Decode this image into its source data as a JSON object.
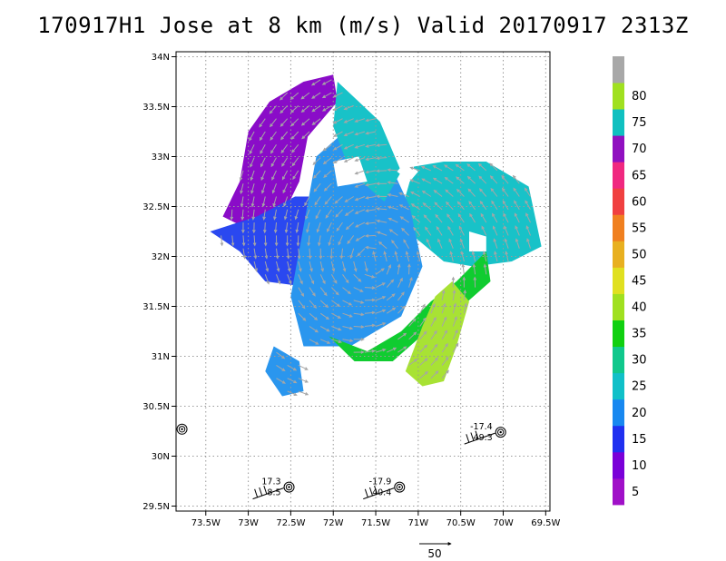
{
  "chart_data": {
    "type": "heatmap",
    "title": "170917H1 Jose at 8 km (m/s) Valid 20170917 2313Z",
    "xlabel": "",
    "ylabel": "",
    "xlim": [
      -73.85,
      -69.45
    ],
    "ylim": [
      29.45,
      34.05
    ],
    "grid": true,
    "x_ticks": [
      {
        "value": -73.5,
        "label": "73.5W"
      },
      {
        "value": -73.0,
        "label": "73W"
      },
      {
        "value": -72.5,
        "label": "72.5W"
      },
      {
        "value": -72.0,
        "label": "72W"
      },
      {
        "value": -71.5,
        "label": "71.5W"
      },
      {
        "value": -71.0,
        "label": "71W"
      },
      {
        "value": -70.5,
        "label": "70.5W"
      },
      {
        "value": -70.0,
        "label": "70W"
      },
      {
        "value": -69.5,
        "label": "69.5W"
      }
    ],
    "y_ticks": [
      {
        "value": 29.5,
        "label": "29.5N"
      },
      {
        "value": 30.0,
        "label": "30N"
      },
      {
        "value": 30.5,
        "label": "30.5N"
      },
      {
        "value": 31.0,
        "label": "31N"
      },
      {
        "value": 31.5,
        "label": "31.5N"
      },
      {
        "value": 32.0,
        "label": "32N"
      },
      {
        "value": 32.5,
        "label": "32.5N"
      },
      {
        "value": 33.0,
        "label": "33N"
      },
      {
        "value": 33.5,
        "label": "33.5N"
      },
      {
        "value": 34.0,
        "label": "34N"
      }
    ],
    "colorbar": {
      "labels": [
        "5",
        "10",
        "15",
        "20",
        "25",
        "30",
        "35",
        "40",
        "45",
        "50",
        "55",
        "60",
        "65",
        "70",
        "75",
        "80"
      ],
      "bins": [
        {
          "color": "#a010c8"
        },
        {
          "color": "#7a00d8"
        },
        {
          "color": "#2030f0"
        },
        {
          "color": "#1888f0"
        },
        {
          "color": "#10c0c8"
        },
        {
          "color": "#10c88c"
        },
        {
          "color": "#10d010"
        },
        {
          "color": "#a0e020"
        },
        {
          "color": "#e0e020"
        },
        {
          "color": "#e8b020"
        },
        {
          "color": "#f08020"
        },
        {
          "color": "#f04040"
        },
        {
          "color": "#f02880"
        },
        {
          "color": "#9010c0"
        },
        {
          "color": "#10c0c0"
        },
        {
          "color": "#a0e020"
        },
        {
          "color": "#a8a8a8"
        }
      ]
    },
    "wind_regions": [
      {
        "name": "dark-purple-nw-arc",
        "speed_bin": "65-70",
        "color": "#8a0cc8",
        "lonlat": [
          [
            -73.3,
            32.4
          ],
          [
            -73.1,
            32.75
          ],
          [
            -73.0,
            33.25
          ],
          [
            -72.75,
            33.55
          ],
          [
            -72.35,
            33.75
          ],
          [
            -72.0,
            33.82
          ],
          [
            -71.95,
            33.55
          ],
          [
            -72.3,
            33.2
          ],
          [
            -72.4,
            32.75
          ],
          [
            -72.6,
            32.4
          ],
          [
            -72.95,
            32.25
          ]
        ]
      },
      {
        "name": "blue-west-band",
        "speed_bin": "10-15",
        "color": "#2a48f0",
        "lonlat": [
          [
            -73.45,
            32.25
          ],
          [
            -73.1,
            32.05
          ],
          [
            -72.8,
            31.75
          ],
          [
            -72.35,
            31.7
          ],
          [
            -72.05,
            31.95
          ],
          [
            -71.95,
            32.35
          ],
          [
            -72.2,
            32.6
          ],
          [
            -72.45,
            32.6
          ],
          [
            -72.9,
            32.4
          ]
        ]
      },
      {
        "name": "cyan-east-region",
        "speed_bin": "20-25",
        "color": "#18c2c8",
        "lonlat": [
          [
            -71.05,
            32.9
          ],
          [
            -70.7,
            32.95
          ],
          [
            -70.2,
            32.95
          ],
          [
            -69.7,
            32.7
          ],
          [
            -69.55,
            32.1
          ],
          [
            -69.9,
            31.95
          ],
          [
            -70.35,
            31.9
          ],
          [
            -70.7,
            31.95
          ],
          [
            -71.05,
            32.2
          ],
          [
            -71.15,
            32.6
          ]
        ]
      },
      {
        "name": "light-blue-center",
        "speed_bin": "15-20",
        "color": "#2a96ee",
        "lonlat": [
          [
            -72.2,
            33.0
          ],
          [
            -71.8,
            33.3
          ],
          [
            -71.4,
            33.05
          ],
          [
            -71.1,
            32.5
          ],
          [
            -70.95,
            31.9
          ],
          [
            -71.2,
            31.4
          ],
          [
            -71.8,
            31.1
          ],
          [
            -72.35,
            31.1
          ],
          [
            -72.5,
            31.6
          ],
          [
            -72.35,
            32.3
          ]
        ]
      },
      {
        "name": "teal-north-arm",
        "speed_bin": "20-25",
        "color": "#18c2c8",
        "lonlat": [
          [
            -71.95,
            33.75
          ],
          [
            -71.45,
            33.35
          ],
          [
            -71.2,
            32.85
          ],
          [
            -71.4,
            32.55
          ],
          [
            -71.8,
            32.85
          ],
          [
            -72.0,
            33.3
          ]
        ]
      },
      {
        "name": "green-core-ring",
        "speed_bin": "30-35",
        "color": "#10cc30",
        "lonlat": [
          [
            -72.05,
            31.2
          ],
          [
            -71.6,
            31.05
          ],
          [
            -71.2,
            31.25
          ],
          [
            -70.85,
            31.55
          ],
          [
            -70.55,
            31.75
          ],
          [
            -70.2,
            32.05
          ],
          [
            -70.15,
            31.75
          ],
          [
            -70.55,
            31.45
          ],
          [
            -70.9,
            31.25
          ],
          [
            -71.3,
            30.95
          ],
          [
            -71.75,
            30.95
          ]
        ]
      },
      {
        "name": "light-green-maximum",
        "speed_bin": "35-40",
        "color": "#a8e234",
        "lonlat": [
          [
            -71.15,
            30.85
          ],
          [
            -70.95,
            31.3
          ],
          [
            -70.8,
            31.6
          ],
          [
            -70.6,
            31.75
          ],
          [
            -70.4,
            31.55
          ],
          [
            -70.55,
            31.1
          ],
          [
            -70.7,
            30.75
          ],
          [
            -70.95,
            30.7
          ]
        ]
      },
      {
        "name": "blue-south-lobe",
        "speed_bin": "15-20",
        "color": "#2a96ee",
        "lonlat": [
          [
            -72.7,
            31.1
          ],
          [
            -72.4,
            30.95
          ],
          [
            -72.35,
            30.65
          ],
          [
            -72.6,
            30.6
          ],
          [
            -72.8,
            30.85
          ]
        ]
      }
    ],
    "data_gaps": [
      {
        "name": "eye-gap",
        "lonlat": [
          [
            -72.0,
            32.95
          ],
          [
            -71.7,
            33.0
          ],
          [
            -71.6,
            32.75
          ],
          [
            -71.95,
            32.7
          ]
        ]
      },
      {
        "name": "east-gap",
        "lonlat": [
          [
            -70.4,
            32.25
          ],
          [
            -70.2,
            32.2
          ],
          [
            -70.2,
            32.05
          ],
          [
            -70.4,
            32.05
          ]
        ]
      },
      {
        "name": "north-gap",
        "lonlat": [
          [
            -71.15,
            32.95
          ],
          [
            -71.0,
            32.85
          ],
          [
            -71.1,
            32.75
          ],
          [
            -71.25,
            32.85
          ]
        ]
      }
    ],
    "observations": [
      {
        "lon": -73.78,
        "lat": 30.27,
        "upper": "",
        "lower": "",
        "barb": false
      },
      {
        "lon": -72.52,
        "lat": 29.69,
        "upper": "17.3",
        "lower": "8.5",
        "barb": true
      },
      {
        "lon": -71.22,
        "lat": 29.69,
        "upper": "-17.9",
        "lower": "40.4",
        "barb": true
      },
      {
        "lon": -70.03,
        "lat": 30.24,
        "upper": "-17.4",
        "lower": "49.3",
        "barb": true
      }
    ],
    "reference_vector": {
      "label": "50"
    }
  }
}
